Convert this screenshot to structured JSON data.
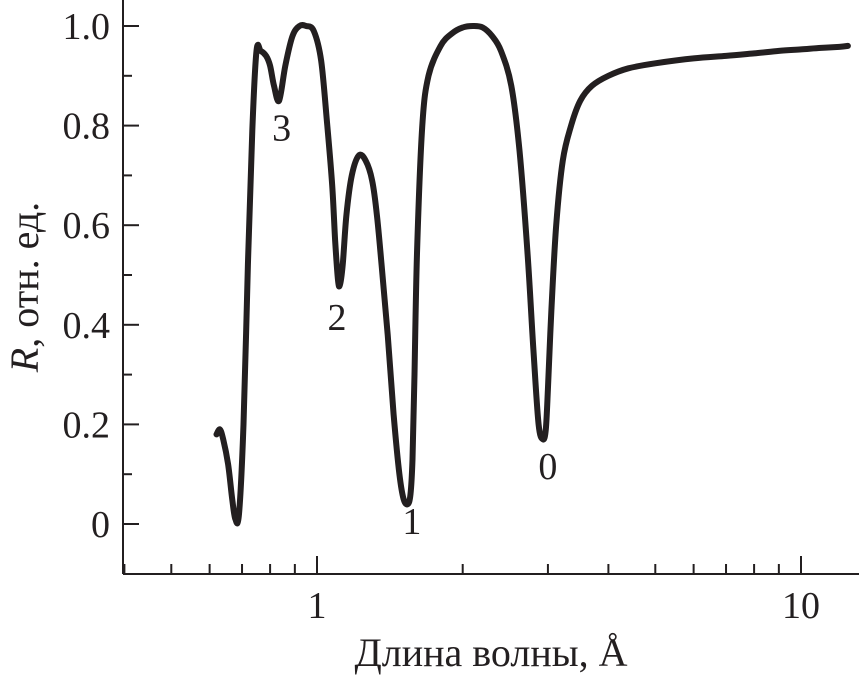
{
  "chart_data": {
    "type": "line",
    "title": "",
    "xlabel": "Длина волны, Å",
    "ylabel_italic": "R",
    "ylabel_rest": ", отн. ед.",
    "xscale": "log",
    "xlim": [
      0.4,
      12.5
    ],
    "ylim": [
      -0.1,
      1.04
    ],
    "grid": false,
    "x_ticks": [
      {
        "value": 1,
        "label": "1"
      },
      {
        "value": 10,
        "label": "10"
      }
    ],
    "y_ticks": [
      {
        "value": 0,
        "label": "0"
      },
      {
        "value": 0.2,
        "label": "0.2"
      },
      {
        "value": 0.4,
        "label": "0.4"
      },
      {
        "value": 0.6,
        "label": "0.6"
      },
      {
        "value": 0.8,
        "label": "0.8"
      },
      {
        "value": 1.0,
        "label": "1.0"
      }
    ],
    "series": [
      {
        "x": [
          0.62,
          0.63,
          0.64,
          0.655,
          0.668,
          0.678,
          0.69,
          0.705,
          0.72,
          0.735,
          0.75,
          0.765,
          0.785,
          0.8,
          0.815,
          0.835,
          0.86,
          0.89,
          0.92,
          0.95,
          0.985,
          1.02,
          1.05,
          1.075,
          1.09,
          1.105,
          1.115,
          1.13,
          1.15,
          1.18,
          1.22,
          1.26,
          1.3,
          1.33,
          1.36,
          1.4,
          1.44,
          1.48,
          1.51,
          1.54,
          1.56,
          1.575,
          1.59,
          1.61,
          1.65,
          1.7,
          1.8,
          1.9,
          2.0,
          2.1,
          2.2,
          2.3,
          2.4,
          2.52,
          2.62,
          2.72,
          2.8,
          2.87,
          2.93,
          2.97,
          3.0,
          3.05,
          3.12,
          3.22,
          3.35,
          3.5,
          3.7,
          4.0,
          4.4,
          5.0,
          6.0,
          7.0,
          8.0,
          9.0,
          10.0,
          11.0,
          12.0,
          12.5
        ],
        "y": [
          0.18,
          0.19,
          0.17,
          0.12,
          0.05,
          0.01,
          0.02,
          0.2,
          0.52,
          0.79,
          0.95,
          0.95,
          0.94,
          0.92,
          0.88,
          0.85,
          0.92,
          0.98,
          1.0,
          1.0,
          0.99,
          0.93,
          0.8,
          0.68,
          0.57,
          0.49,
          0.48,
          0.52,
          0.62,
          0.7,
          0.74,
          0.73,
          0.69,
          0.62,
          0.52,
          0.38,
          0.22,
          0.1,
          0.05,
          0.04,
          0.06,
          0.13,
          0.3,
          0.55,
          0.8,
          0.9,
          0.96,
          0.985,
          0.997,
          1.0,
          0.997,
          0.98,
          0.95,
          0.88,
          0.75,
          0.55,
          0.35,
          0.2,
          0.17,
          0.19,
          0.27,
          0.43,
          0.6,
          0.73,
          0.8,
          0.85,
          0.88,
          0.9,
          0.915,
          0.925,
          0.935,
          0.94,
          0.945,
          0.95,
          0.953,
          0.956,
          0.958,
          0.96
        ]
      }
    ],
    "annotations": [
      {
        "text": "3",
        "x": 0.845,
        "y": 0.77
      },
      {
        "text": "2",
        "x": 1.1,
        "y": 0.39
      },
      {
        "text": "1",
        "x": 1.57,
        "y": -0.02
      },
      {
        "text": "0",
        "x": 3.0,
        "y": 0.09
      }
    ]
  }
}
